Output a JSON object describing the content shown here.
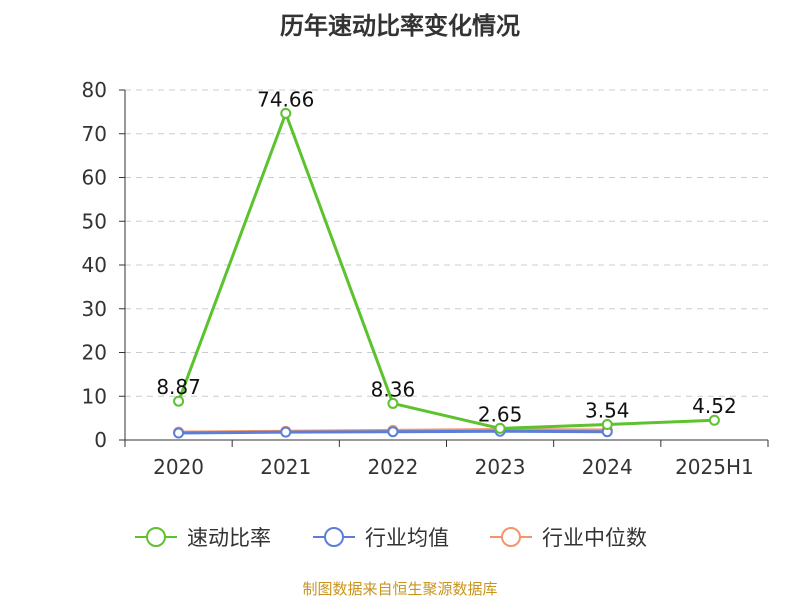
{
  "chart_data": {
    "type": "line",
    "title": "历年速动比率变化情况",
    "categories": [
      "2020",
      "2021",
      "2022",
      "2023",
      "2024",
      "2025H1"
    ],
    "ylim": [
      0,
      80
    ],
    "yticks": [
      0,
      10,
      20,
      30,
      40,
      50,
      60,
      70,
      80
    ],
    "grid": true,
    "legend_position": "bottom",
    "series": [
      {
        "name": "速动比率",
        "color": "#5cc22d",
        "values": [
          8.87,
          74.66,
          8.36,
          2.65,
          3.54,
          4.52
        ],
        "labels": [
          "8.87",
          "74.66",
          "8.36",
          "2.65",
          "3.54",
          "4.52"
        ]
      },
      {
        "name": "行业均值",
        "color": "#5b7fd6",
        "values": [
          1.6,
          1.8,
          1.9,
          2.0,
          1.9,
          null
        ]
      },
      {
        "name": "行业中位数",
        "color": "#f2956a",
        "values": [
          1.8,
          2.0,
          2.2,
          2.4,
          2.3,
          null
        ]
      }
    ]
  },
  "footer": {
    "source": "制图数据来自恒生聚源数据库"
  }
}
